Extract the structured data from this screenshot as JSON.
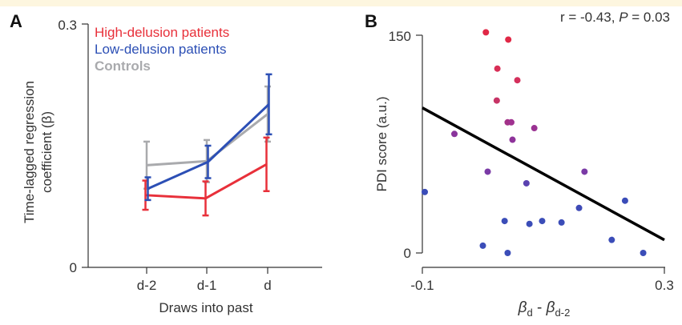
{
  "figure": {
    "panels": [
      {
        "label": "A"
      },
      {
        "label": "B"
      }
    ]
  },
  "chart_data": [
    {
      "type": "line",
      "panel": "A",
      "categories": [
        "d-2",
        "d-1",
        "d"
      ],
      "xlabel": "Draws into past",
      "ylabel": [
        "Time-lagged regression",
        "coefficient (β)"
      ],
      "ylim": [
        0,
        0.3
      ],
      "yticks": [
        "0",
        "0.3"
      ],
      "legend_placement": "top-left",
      "series": [
        {
          "name": "High-delusion patients",
          "color": "#e8303a",
          "values": [
            0.089,
            0.085,
            0.127
          ],
          "errors": [
            0.018,
            0.021,
            0.033
          ]
        },
        {
          "name": "Low-delusion patients",
          "color": "#2c4fb5",
          "values": [
            0.097,
            0.13,
            0.201
          ],
          "errors": [
            0.014,
            0.02,
            0.037
          ]
        },
        {
          "name": "Controls",
          "color": "#a9aaad",
          "values": [
            0.126,
            0.131,
            0.189
          ],
          "errors": [
            0.029,
            0.026,
            0.034
          ]
        }
      ]
    },
    {
      "type": "scatter",
      "panel": "B",
      "annotation": {
        "r_text": "r = -0.43, ",
        "p_italic": "P",
        "p_text": " = 0.03"
      },
      "xlabel": {
        "base": "β",
        "sub1": "d",
        "minus": " - ",
        "sub2": "d-2"
      },
      "ylabel": "PDI score (a.u.)",
      "xlim": [
        -0.1,
        0.3
      ],
      "ylim": [
        0,
        150
      ],
      "xticks": [
        "-0.1",
        "0.3"
      ],
      "yticks": [
        "0",
        "150"
      ],
      "fit_line": {
        "x": [
          -0.1,
          0.3
        ],
        "y": [
          100,
          9
        ]
      },
      "points": [
        {
          "x": 0.005,
          "y": 152,
          "color": "#e02846"
        },
        {
          "x": 0.042,
          "y": 147,
          "color": "#e02846"
        },
        {
          "x": 0.024,
          "y": 127,
          "color": "#d82e56"
        },
        {
          "x": 0.057,
          "y": 119,
          "color": "#d4305c"
        },
        {
          "x": 0.023,
          "y": 105,
          "color": "#c73466"
        },
        {
          "x": 0.041,
          "y": 90,
          "color": "#a33288"
        },
        {
          "x": 0.047,
          "y": 90,
          "color": "#a03290"
        },
        {
          "x": 0.085,
          "y": 86,
          "color": "#9a3292"
        },
        {
          "x": -0.047,
          "y": 82,
          "color": "#8a349c"
        },
        {
          "x": 0.049,
          "y": 78,
          "color": "#8e339a"
        },
        {
          "x": 0.008,
          "y": 56,
          "color": "#7a3aa6"
        },
        {
          "x": 0.168,
          "y": 56,
          "color": "#7a3aa6"
        },
        {
          "x": 0.072,
          "y": 48,
          "color": "#5a42b0"
        },
        {
          "x": -0.096,
          "y": 42,
          "color": "#3a4cb8"
        },
        {
          "x": 0.235,
          "y": 36,
          "color": "#3a4cb8"
        },
        {
          "x": 0.159,
          "y": 31,
          "color": "#3e4ab6"
        },
        {
          "x": 0.036,
          "y": 22,
          "color": "#3b4db8"
        },
        {
          "x": 0.098,
          "y": 22,
          "color": "#3b4db8"
        },
        {
          "x": 0.13,
          "y": 21,
          "color": "#3b4db8"
        },
        {
          "x": 0.077,
          "y": 20,
          "color": "#3b4db8"
        },
        {
          "x": 0.213,
          "y": 9,
          "color": "#3b4db8"
        },
        {
          "x": 0.0,
          "y": 5,
          "color": "#3b4db8"
        },
        {
          "x": 0.041,
          "y": 0,
          "color": "#3b4db8"
        },
        {
          "x": 0.265,
          "y": 0,
          "color": "#3b4db8"
        }
      ]
    }
  ]
}
